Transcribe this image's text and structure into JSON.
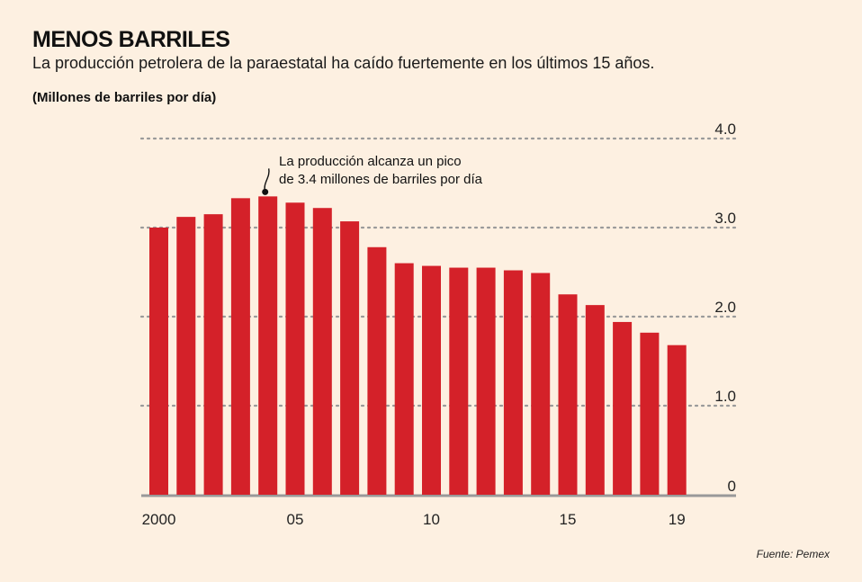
{
  "title": "MENOS BARRILES",
  "subtitle": "La producción petrolera de la paraestatal ha caído fuertemente en los últimos 15 años.",
  "unit_label": "(Millones de barriles por día)",
  "source": "Fuente: Pemex",
  "colors": {
    "bar": "#d42129",
    "background": "#fdf0e1",
    "grid": "#9a9a9a",
    "axis": "#999999"
  },
  "chart_data": {
    "type": "bar",
    "categories": [
      "2000",
      "2001",
      "2002",
      "2003",
      "2004",
      "2005",
      "2006",
      "2007",
      "2008",
      "2009",
      "2010",
      "2011",
      "2012",
      "2013",
      "2014",
      "2015",
      "2016",
      "2017",
      "2018",
      "2019"
    ],
    "values": [
      3.0,
      3.12,
      3.15,
      3.33,
      3.35,
      3.28,
      3.22,
      3.07,
      2.78,
      2.6,
      2.57,
      2.55,
      2.55,
      2.52,
      2.49,
      2.25,
      2.13,
      1.94,
      1.82,
      1.68
    ],
    "x_tick_labels": [
      {
        "index": 0,
        "label": "2000"
      },
      {
        "index": 5,
        "label": "05"
      },
      {
        "index": 10,
        "label": "10"
      },
      {
        "index": 15,
        "label": "15"
      },
      {
        "index": 19,
        "label": "19"
      }
    ],
    "y_ticks": [
      {
        "value": 0,
        "label": "0"
      },
      {
        "value": 1,
        "label": "1.0"
      },
      {
        "value": 2,
        "label": "2.0"
      },
      {
        "value": 3,
        "label": "3.0"
      },
      {
        "value": 4,
        "label": "4.0"
      }
    ],
    "ylim": [
      0,
      4.1
    ],
    "grid": true,
    "annotation": {
      "index": 4,
      "lines": [
        "La producción alcanza un pico",
        "de 3.4 millones de barriles por día"
      ]
    }
  }
}
